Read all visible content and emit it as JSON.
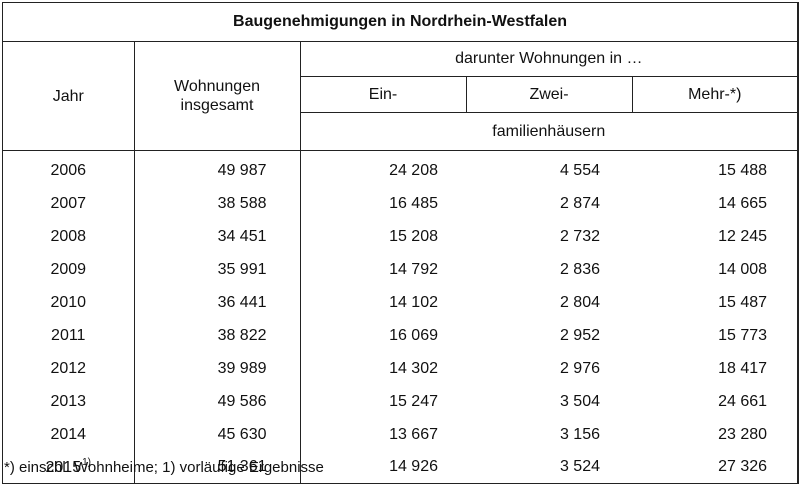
{
  "table": {
    "title": "Baugenehmigungen in Nordrhein-Westfalen",
    "headers": {
      "jahr": "Jahr",
      "wohnungen_line1": "Wohnungen",
      "wohnungen_line2": "insgesamt",
      "darunter": "darunter Wohnungen in …",
      "ein": "Ein-",
      "zwei": "Zwei-",
      "mehr": "Mehr-*)",
      "familien": "familienhäusern"
    },
    "rows": [
      {
        "jahr": "2006",
        "ins": "49 987",
        "ein": "24 208",
        "zwei": "4 554",
        "mehr": "15 488"
      },
      {
        "jahr": "2007",
        "ins": "38 588",
        "ein": "16 485",
        "zwei": "2 874",
        "mehr": "14 665"
      },
      {
        "jahr": "2008",
        "ins": "34 451",
        "ein": "15 208",
        "zwei": "2 732",
        "mehr": "12 245"
      },
      {
        "jahr": "2009",
        "ins": "35 991",
        "ein": "14 792",
        "zwei": "2 836",
        "mehr": "14 008"
      },
      {
        "jahr": "2010",
        "ins": "36 441",
        "ein": "14 102",
        "zwei": "2 804",
        "mehr": "15 487"
      },
      {
        "jahr": "2011",
        "ins": "38 822",
        "ein": "16 069",
        "zwei": "2 952",
        "mehr": "15 773"
      },
      {
        "jahr": "2012",
        "ins": "39 989",
        "ein": "14 302",
        "zwei": "2 976",
        "mehr": "18 417"
      },
      {
        "jahr": "2013",
        "ins": "49 586",
        "ein": "15 247",
        "zwei": "3 504",
        "mehr": "24 661"
      },
      {
        "jahr": "2014",
        "ins": "45 630",
        "ein": "13 667",
        "zwei": "3 156",
        "mehr": "23 280"
      },
      {
        "jahr": "2015",
        "jahr_sup": "1)",
        "ins": "51 361",
        "ein": "14 926",
        "zwei": "3 524",
        "mehr": "27 326"
      }
    ]
  },
  "footnote": "*) einschl. Wohnheime; 1) vorläufige Ergebnisse"
}
